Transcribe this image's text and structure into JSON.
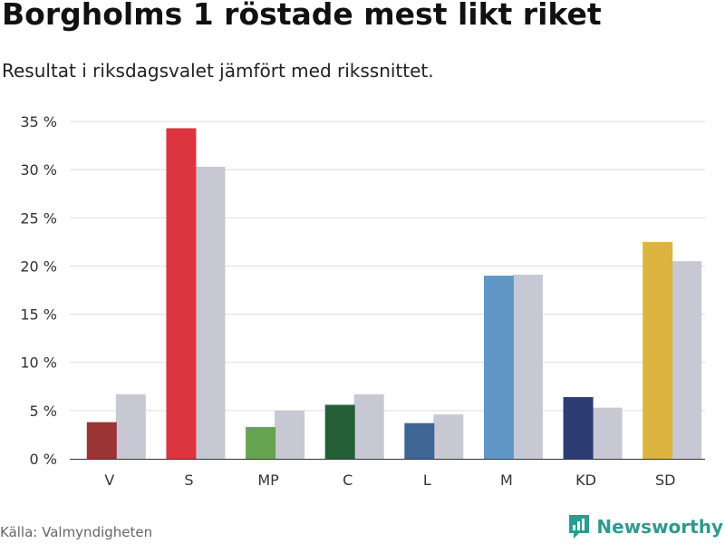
{
  "title": "Borgholms 1 röstade mest likt riket",
  "subtitle": "Resultat i riksdagsvalet jämfört med rikssnittet.",
  "source": "Källa: Valmyndigheten",
  "brand": "Newsworthy",
  "colors": {
    "national": "#c8c8d4",
    "grid": "#dddddd",
    "brand": "#2f9a8f"
  },
  "chart_data": {
    "type": "bar",
    "categories": [
      "V",
      "S",
      "MP",
      "C",
      "L",
      "M",
      "KD",
      "SD"
    ],
    "series": [
      {
        "values": [
          3.8,
          34.3,
          3.3,
          5.6,
          3.7,
          19.0,
          6.4,
          22.5
        ],
        "colors": [
          "#9b3535",
          "#dd3540",
          "#67a450",
          "#255f36",
          "#3f6593",
          "#6197c7",
          "#2e3c74",
          "#ddb442"
        ]
      },
      {
        "values": [
          6.7,
          30.3,
          5.0,
          6.7,
          4.6,
          19.1,
          5.3,
          20.5
        ]
      }
    ],
    "yticks": [
      "0 %",
      "5 %",
      "10 %",
      "15 %",
      "20 %",
      "25 %",
      "30 %",
      "35 %"
    ],
    "ylim": [
      0,
      35
    ],
    "grid": true
  }
}
